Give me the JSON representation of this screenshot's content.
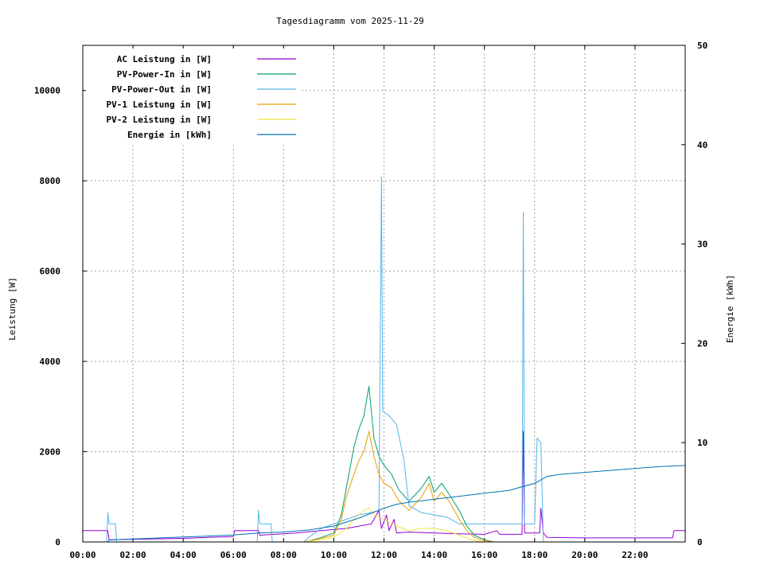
{
  "chart_data": {
    "type": "line",
    "title": "Tagesdiagramm vom 2025-11-29",
    "ylabel": "Leistung [W]",
    "y2label": "Energie [kWh]",
    "xlim": [
      0,
      24
    ],
    "ylim": [
      0,
      11000
    ],
    "y2lim": [
      0,
      50
    ],
    "grid": true,
    "legend_position": "top-left",
    "x_ticks": [
      {
        "v": 0,
        "label": "00:00"
      },
      {
        "v": 2,
        "label": "02:00"
      },
      {
        "v": 4,
        "label": "04:00"
      },
      {
        "v": 6,
        "label": "06:00"
      },
      {
        "v": 8,
        "label": "08:00"
      },
      {
        "v": 10,
        "label": "10:00"
      },
      {
        "v": 12,
        "label": "12:00"
      },
      {
        "v": 14,
        "label": "14:00"
      },
      {
        "v": 16,
        "label": "16:00"
      },
      {
        "v": 18,
        "label": "18:00"
      },
      {
        "v": 20,
        "label": "20:00"
      },
      {
        "v": 22,
        "label": "22:00"
      }
    ],
    "y_ticks": [
      {
        "v": 0,
        "label": "0"
      },
      {
        "v": 2000,
        "label": "2000"
      },
      {
        "v": 4000,
        "label": "4000"
      },
      {
        "v": 6000,
        "label": "6000"
      },
      {
        "v": 8000,
        "label": "8000"
      },
      {
        "v": 10000,
        "label": "10000"
      }
    ],
    "y2_ticks": [
      {
        "v": 0,
        "label": "0"
      },
      {
        "v": 10,
        "label": "10"
      },
      {
        "v": 20,
        "label": "20"
      },
      {
        "v": 30,
        "label": "30"
      },
      {
        "v": 40,
        "label": "40"
      },
      {
        "v": 50,
        "label": "50"
      }
    ],
    "series": [
      {
        "name": "AC Leistung in [W]",
        "color": "#9400d3",
        "axis": "y1",
        "points": [
          [
            0,
            250
          ],
          [
            1.0,
            250
          ],
          [
            1.05,
            50
          ],
          [
            2,
            60
          ],
          [
            4,
            80
          ],
          [
            5,
            100
          ],
          [
            6,
            120
          ],
          [
            6.05,
            250
          ],
          [
            7.0,
            250
          ],
          [
            7.05,
            150
          ],
          [
            8.5,
            200
          ],
          [
            9.5,
            250
          ],
          [
            10.5,
            300
          ],
          [
            11.5,
            400
          ],
          [
            11.8,
            700
          ],
          [
            11.9,
            300
          ],
          [
            12.1,
            600
          ],
          [
            12.2,
            250
          ],
          [
            12.4,
            500
          ],
          [
            12.5,
            200
          ],
          [
            13,
            220
          ],
          [
            14,
            200
          ],
          [
            15,
            180
          ],
          [
            16,
            170
          ],
          [
            16.5,
            250
          ],
          [
            16.6,
            170
          ],
          [
            17.5,
            170
          ],
          [
            17.55,
            2450
          ],
          [
            17.6,
            200
          ],
          [
            18.2,
            200
          ],
          [
            18.25,
            750
          ],
          [
            18.35,
            200
          ],
          [
            18.5,
            100
          ],
          [
            20,
            90
          ],
          [
            22,
            90
          ],
          [
            23.5,
            90
          ],
          [
            23.55,
            250
          ],
          [
            24,
            250
          ]
        ]
      },
      {
        "name": "PV-Power-In in [W]",
        "color": "#009e73",
        "axis": "y1",
        "points": [
          [
            0,
            0
          ],
          [
            8.8,
            0
          ],
          [
            9.0,
            20
          ],
          [
            9.5,
            100
          ],
          [
            10,
            200
          ],
          [
            10.3,
            600
          ],
          [
            10.5,
            1200
          ],
          [
            10.8,
            2100
          ],
          [
            11.0,
            2500
          ],
          [
            11.2,
            2800
          ],
          [
            11.4,
            3450
          ],
          [
            11.6,
            2300
          ],
          [
            11.8,
            1900
          ],
          [
            12.0,
            1700
          ],
          [
            12.3,
            1500
          ],
          [
            12.6,
            1150
          ],
          [
            13.0,
            900
          ],
          [
            13.5,
            1200
          ],
          [
            13.8,
            1450
          ],
          [
            14.0,
            1100
          ],
          [
            14.3,
            1300
          ],
          [
            14.6,
            1050
          ],
          [
            15.0,
            700
          ],
          [
            15.3,
            350
          ],
          [
            15.6,
            150
          ],
          [
            16.0,
            50
          ],
          [
            16.4,
            0
          ],
          [
            24,
            0
          ]
        ]
      },
      {
        "name": "PV-Power-Out in [W]",
        "color": "#56b4e9",
        "axis": "y1",
        "points": [
          [
            0,
            0
          ],
          [
            0.95,
            0
          ],
          [
            1.0,
            650
          ],
          [
            1.05,
            400
          ],
          [
            1.3,
            400
          ],
          [
            1.35,
            0
          ],
          [
            6.95,
            0
          ],
          [
            7.0,
            700
          ],
          [
            7.05,
            400
          ],
          [
            7.5,
            400
          ],
          [
            7.55,
            0
          ],
          [
            8.8,
            0
          ],
          [
            9.0,
            100
          ],
          [
            9.5,
            300
          ],
          [
            10.0,
            400
          ],
          [
            10.5,
            500
          ],
          [
            11.0,
            600
          ],
          [
            11.5,
            650
          ],
          [
            11.8,
            700
          ],
          [
            11.9,
            8100
          ],
          [
            11.95,
            2900
          ],
          [
            12.2,
            2800
          ],
          [
            12.5,
            2600
          ],
          [
            12.8,
            1800
          ],
          [
            13.0,
            800
          ],
          [
            13.5,
            650
          ],
          [
            14.0,
            600
          ],
          [
            14.5,
            550
          ],
          [
            15.0,
            400
          ],
          [
            16.0,
            400
          ],
          [
            17.0,
            400
          ],
          [
            17.5,
            400
          ],
          [
            17.55,
            7300
          ],
          [
            17.6,
            400
          ],
          [
            18.0,
            400
          ],
          [
            18.1,
            2300
          ],
          [
            18.25,
            2200
          ],
          [
            18.35,
            0
          ],
          [
            24,
            0
          ]
        ]
      },
      {
        "name": "PV-1 Leistung in [W]",
        "color": "#e69f00",
        "axis": "y1",
        "points": [
          [
            0,
            0
          ],
          [
            8.8,
            0
          ],
          [
            9.0,
            20
          ],
          [
            9.5,
            80
          ],
          [
            10,
            150
          ],
          [
            10.3,
            500
          ],
          [
            10.5,
            1000
          ],
          [
            10.8,
            1500
          ],
          [
            11.0,
            1800
          ],
          [
            11.2,
            2000
          ],
          [
            11.4,
            2450
          ],
          [
            11.6,
            1900
          ],
          [
            11.8,
            1500
          ],
          [
            12.0,
            1300
          ],
          [
            12.3,
            1200
          ],
          [
            12.6,
            900
          ],
          [
            13.0,
            700
          ],
          [
            13.5,
            1000
          ],
          [
            13.8,
            1300
          ],
          [
            14.0,
            900
          ],
          [
            14.3,
            1100
          ],
          [
            14.6,
            900
          ],
          [
            15.0,
            500
          ],
          [
            15.3,
            250
          ],
          [
            15.6,
            100
          ],
          [
            16.0,
            30
          ],
          [
            16.4,
            0
          ],
          [
            24,
            0
          ]
        ]
      },
      {
        "name": "PV-2 Leistung in [W]",
        "color": "#f0e442",
        "axis": "y1",
        "points": [
          [
            0,
            0
          ],
          [
            8.8,
            0
          ],
          [
            9.5,
            50
          ],
          [
            10,
            100
          ],
          [
            10.5,
            300
          ],
          [
            10.8,
            500
          ],
          [
            11.0,
            600
          ],
          [
            11.2,
            700
          ],
          [
            11.4,
            750
          ],
          [
            11.6,
            600
          ],
          [
            11.8,
            550
          ],
          [
            12.0,
            500
          ],
          [
            12.5,
            350
          ],
          [
            13.0,
            250
          ],
          [
            13.5,
            300
          ],
          [
            14.0,
            300
          ],
          [
            14.5,
            250
          ],
          [
            15.0,
            150
          ],
          [
            15.5,
            50
          ],
          [
            16.0,
            0
          ],
          [
            24,
            0
          ]
        ]
      },
      {
        "name": "Energie in [kWh]",
        "color": "#0072b2",
        "axis": "y2",
        "points": [
          [
            1.0,
            0
          ],
          [
            1.05,
            0.2
          ],
          [
            2,
            0.3
          ],
          [
            4,
            0.5
          ],
          [
            6,
            0.7
          ],
          [
            7,
            0.9
          ],
          [
            8,
            1.0
          ],
          [
            9,
            1.2
          ],
          [
            10,
            1.6
          ],
          [
            11,
            2.4
          ],
          [
            11.5,
            2.9
          ],
          [
            12,
            3.4
          ],
          [
            12.5,
            3.8
          ],
          [
            13,
            4.0
          ],
          [
            14,
            4.3
          ],
          [
            15,
            4.6
          ],
          [
            16,
            4.9
          ],
          [
            17,
            5.2
          ],
          [
            17.55,
            5.6
          ],
          [
            18,
            5.9
          ],
          [
            18.5,
            6.6
          ],
          [
            19,
            6.8
          ],
          [
            20,
            7.0
          ],
          [
            21,
            7.2
          ],
          [
            22,
            7.4
          ],
          [
            23,
            7.6
          ],
          [
            24,
            7.7
          ]
        ]
      }
    ]
  }
}
